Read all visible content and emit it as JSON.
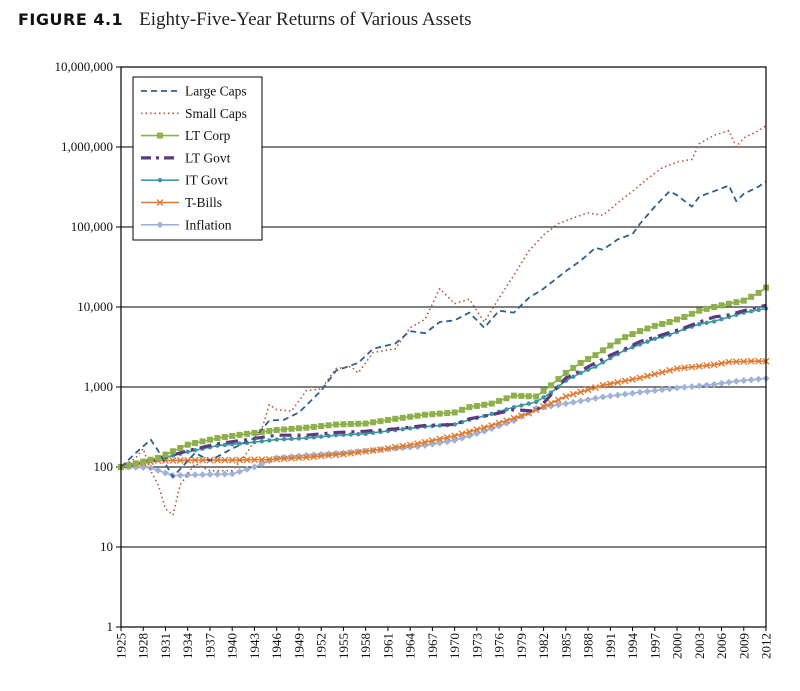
{
  "figure": {
    "label": "FIGURE 4.1",
    "title": "Eighty-Five-Year Returns of Various Assets"
  },
  "chart_data": {
    "type": "line",
    "title": "Eighty-Five-Year Returns of Various Assets",
    "xlabel": "",
    "ylabel": "",
    "y_scale": "log",
    "ylim": [
      1,
      10000000
    ],
    "xlim": [
      1925,
      2012
    ],
    "y_ticks": [
      1,
      10,
      100,
      1000,
      10000,
      100000,
      1000000,
      10000000
    ],
    "y_tick_labels": [
      "1",
      "10",
      "100",
      "1,000",
      "10,000",
      "100,000",
      "1,000,000",
      "10,000,000"
    ],
    "x_tick_labels": [
      "1925",
      "1928",
      "1931",
      "1934",
      "1937",
      "1940",
      "1943",
      "1946",
      "1949",
      "1952",
      "1955",
      "1958",
      "1961",
      "1964",
      "1967",
      "1970",
      "1973",
      "1976",
      "1979",
      "1982",
      "1985",
      "1988",
      "1991",
      "1994",
      "1997",
      "2000",
      "2003",
      "2006",
      "2009",
      "2012"
    ],
    "grid": "horizontal",
    "legend_position": "top-left",
    "series": [
      {
        "name": "Large Caps",
        "color": "#2e5f8f",
        "style": "dashed",
        "points": [
          [
            1925,
            100
          ],
          [
            1927,
            150
          ],
          [
            1929,
            220
          ],
          [
            1930,
            160
          ],
          [
            1932,
            75
          ],
          [
            1935,
            150
          ],
          [
            1937,
            120
          ],
          [
            1940,
            170
          ],
          [
            1943,
            230
          ],
          [
            1945,
            380
          ],
          [
            1947,
            390
          ],
          [
            1949,
            480
          ],
          [
            1952,
            900
          ],
          [
            1954,
            1600
          ],
          [
            1957,
            2000
          ],
          [
            1959,
            3000
          ],
          [
            1962,
            3500
          ],
          [
            1964,
            5000
          ],
          [
            1966,
            4700
          ],
          [
            1968,
            6500
          ],
          [
            1970,
            6800
          ],
          [
            1972,
            8500
          ],
          [
            1974,
            5500
          ],
          [
            1976,
            9000
          ],
          [
            1978,
            8500
          ],
          [
            1980,
            13000
          ],
          [
            1982,
            17000
          ],
          [
            1985,
            28000
          ],
          [
            1987,
            38000
          ],
          [
            1989,
            55000
          ],
          [
            1990,
            52000
          ],
          [
            1992,
            70000
          ],
          [
            1994,
            82000
          ],
          [
            1995,
            110000
          ],
          [
            1997,
            180000
          ],
          [
            1999,
            280000
          ],
          [
            2000,
            250000
          ],
          [
            2002,
            180000
          ],
          [
            2003,
            240000
          ],
          [
            2005,
            280000
          ],
          [
            2007,
            330000
          ],
          [
            2008,
            210000
          ],
          [
            2009,
            260000
          ],
          [
            2011,
            320000
          ],
          [
            2012,
            370000
          ]
        ]
      },
      {
        "name": "Small Caps",
        "color": "#b5533c",
        "style": "dotted",
        "points": [
          [
            1925,
            100
          ],
          [
            1927,
            130
          ],
          [
            1928,
            170
          ],
          [
            1929,
            90
          ],
          [
            1930,
            60
          ],
          [
            1931,
            30
          ],
          [
            1932,
            25
          ],
          [
            1933,
            60
          ],
          [
            1935,
            110
          ],
          [
            1937,
            90
          ],
          [
            1940,
            90
          ],
          [
            1942,
            150
          ],
          [
            1944,
            300
          ],
          [
            1945,
            600
          ],
          [
            1946,
            520
          ],
          [
            1948,
            500
          ],
          [
            1950,
            900
          ],
          [
            1952,
            950
          ],
          [
            1954,
            1700
          ],
          [
            1956,
            1800
          ],
          [
            1957,
            1500
          ],
          [
            1959,
            2700
          ],
          [
            1962,
            3000
          ],
          [
            1964,
            5500
          ],
          [
            1966,
            7000
          ],
          [
            1968,
            17000
          ],
          [
            1970,
            11000
          ],
          [
            1972,
            12500
          ],
          [
            1974,
            6500
          ],
          [
            1976,
            13000
          ],
          [
            1978,
            25000
          ],
          [
            1980,
            50000
          ],
          [
            1982,
            80000
          ],
          [
            1984,
            110000
          ],
          [
            1986,
            130000
          ],
          [
            1988,
            150000
          ],
          [
            1990,
            140000
          ],
          [
            1992,
            200000
          ],
          [
            1994,
            280000
          ],
          [
            1996,
            400000
          ],
          [
            1998,
            550000
          ],
          [
            2000,
            650000
          ],
          [
            2002,
            700000
          ],
          [
            2003,
            1100000
          ],
          [
            2005,
            1400000
          ],
          [
            2007,
            1600000
          ],
          [
            2008,
            1000000
          ],
          [
            2009,
            1300000
          ],
          [
            2011,
            1600000
          ],
          [
            2012,
            1850000
          ]
        ]
      },
      {
        "name": "LT Corp",
        "color": "#8db04a",
        "style": "solid-square",
        "points": [
          [
            1925,
            100
          ],
          [
            1930,
            130
          ],
          [
            1934,
            190
          ],
          [
            1938,
            230
          ],
          [
            1942,
            260
          ],
          [
            1946,
            290
          ],
          [
            1950,
            310
          ],
          [
            1954,
            340
          ],
          [
            1958,
            350
          ],
          [
            1962,
            400
          ],
          [
            1966,
            450
          ],
          [
            1970,
            480
          ],
          [
            1972,
            560
          ],
          [
            1975,
            620
          ],
          [
            1978,
            780
          ],
          [
            1981,
            760
          ],
          [
            1983,
            1050
          ],
          [
            1985,
            1500
          ],
          [
            1987,
            2000
          ],
          [
            1989,
            2500
          ],
          [
            1991,
            3300
          ],
          [
            1993,
            4200
          ],
          [
            1995,
            5000
          ],
          [
            1997,
            5800
          ],
          [
            1999,
            6500
          ],
          [
            2001,
            7500
          ],
          [
            2003,
            9000
          ],
          [
            2005,
            10000
          ],
          [
            2007,
            11000
          ],
          [
            2009,
            12000
          ],
          [
            2011,
            15000
          ],
          [
            2012,
            17500
          ]
        ]
      },
      {
        "name": "LT Govt",
        "color": "#5c3a7f",
        "style": "dash-dot",
        "points": [
          [
            1925,
            100
          ],
          [
            1930,
            125
          ],
          [
            1934,
            160
          ],
          [
            1938,
            195
          ],
          [
            1942,
            220
          ],
          [
            1946,
            250
          ],
          [
            1950,
            250
          ],
          [
            1954,
            270
          ],
          [
            1958,
            280
          ],
          [
            1962,
            300
          ],
          [
            1966,
            330
          ],
          [
            1970,
            340
          ],
          [
            1972,
            400
          ],
          [
            1975,
            450
          ],
          [
            1978,
            520
          ],
          [
            1981,
            500
          ],
          [
            1983,
            800
          ],
          [
            1985,
            1300
          ],
          [
            1987,
            1600
          ],
          [
            1989,
            2000
          ],
          [
            1991,
            2500
          ],
          [
            1993,
            3000
          ],
          [
            1995,
            3700
          ],
          [
            1997,
            4200
          ],
          [
            1999,
            4800
          ],
          [
            2001,
            5500
          ],
          [
            2003,
            6500
          ],
          [
            2005,
            7500
          ],
          [
            2007,
            8000
          ],
          [
            2009,
            9000
          ],
          [
            2011,
            10000
          ],
          [
            2012,
            10500
          ]
        ]
      },
      {
        "name": "IT Govt",
        "color": "#3d96a3",
        "style": "solid-dot",
        "points": [
          [
            1925,
            100
          ],
          [
            1930,
            125
          ],
          [
            1934,
            155
          ],
          [
            1938,
            185
          ],
          [
            1942,
            200
          ],
          [
            1946,
            220
          ],
          [
            1950,
            230
          ],
          [
            1954,
            250
          ],
          [
            1958,
            260
          ],
          [
            1962,
            290
          ],
          [
            1966,
            320
          ],
          [
            1970,
            340
          ],
          [
            1972,
            390
          ],
          [
            1975,
            460
          ],
          [
            1978,
            560
          ],
          [
            1981,
            650
          ],
          [
            1983,
            850
          ],
          [
            1985,
            1200
          ],
          [
            1987,
            1500
          ],
          [
            1989,
            1800
          ],
          [
            1991,
            2300
          ],
          [
            1993,
            2900
          ],
          [
            1995,
            3400
          ],
          [
            1997,
            4000
          ],
          [
            1999,
            4500
          ],
          [
            2001,
            5300
          ],
          [
            2003,
            6100
          ],
          [
            2005,
            6600
          ],
          [
            2007,
            7500
          ],
          [
            2009,
            8500
          ],
          [
            2011,
            9200
          ],
          [
            2012,
            9600
          ]
        ]
      },
      {
        "name": "T-Bills",
        "color": "#e07b30",
        "style": "solid-x",
        "points": [
          [
            1925,
            100
          ],
          [
            1930,
            120
          ],
          [
            1935,
            122
          ],
          [
            1940,
            122
          ],
          [
            1945,
            124
          ],
          [
            1950,
            132
          ],
          [
            1955,
            145
          ],
          [
            1960,
            165
          ],
          [
            1965,
            195
          ],
          [
            1970,
            245
          ],
          [
            1975,
            330
          ],
          [
            1980,
            470
          ],
          [
            1985,
            760
          ],
          [
            1990,
            1050
          ],
          [
            1995,
            1300
          ],
          [
            2000,
            1700
          ],
          [
            2005,
            1900
          ],
          [
            2007,
            2050
          ],
          [
            2010,
            2100
          ],
          [
            2012,
            2100
          ]
        ]
      },
      {
        "name": "Inflation",
        "color": "#9fb3d9",
        "style": "solid-diamond",
        "points": [
          [
            1925,
            100
          ],
          [
            1929,
            98
          ],
          [
            1932,
            78
          ],
          [
            1935,
            80
          ],
          [
            1940,
            82
          ],
          [
            1943,
            100
          ],
          [
            1946,
            130
          ],
          [
            1950,
            140
          ],
          [
            1955,
            150
          ],
          [
            1960,
            165
          ],
          [
            1965,
            180
          ],
          [
            1970,
            215
          ],
          [
            1974,
            280
          ],
          [
            1978,
            380
          ],
          [
            1981,
            540
          ],
          [
            1985,
            620
          ],
          [
            1990,
            750
          ],
          [
            1995,
            860
          ],
          [
            2000,
            970
          ],
          [
            2005,
            1080
          ],
          [
            2008,
            1180
          ],
          [
            2012,
            1280
          ]
        ]
      }
    ]
  }
}
